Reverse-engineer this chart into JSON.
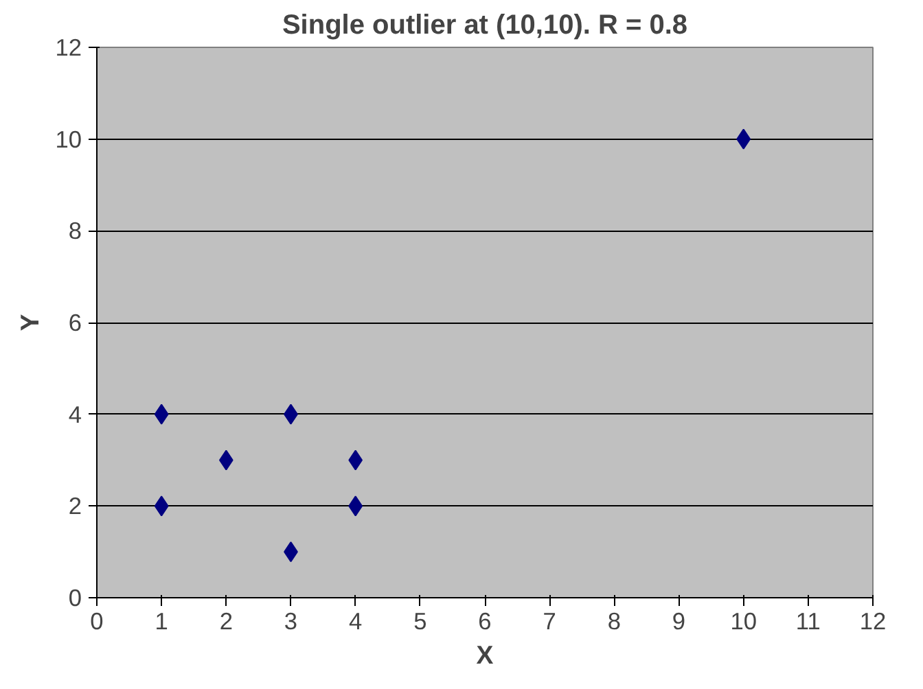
{
  "chart_data": {
    "type": "scatter",
    "title": "Single outlier at (10,10). R = 0.8",
    "xlabel": "X",
    "ylabel": "Y",
    "x": [
      1,
      1,
      2,
      3,
      3,
      4,
      4,
      10
    ],
    "series": [
      {
        "color": "#000080",
        "values": [
          4,
          2,
          3,
          4,
          1,
          3,
          2,
          10
        ]
      }
    ],
    "xlim": [
      0,
      12
    ],
    "ylim": [
      0,
      12
    ],
    "xticks": [
      0,
      1,
      2,
      3,
      4,
      5,
      6,
      7,
      8,
      9,
      10,
      11,
      12
    ],
    "yticks": [
      0,
      2,
      4,
      6,
      8,
      10,
      12
    ],
    "grid": "y",
    "marker": "diamond"
  }
}
